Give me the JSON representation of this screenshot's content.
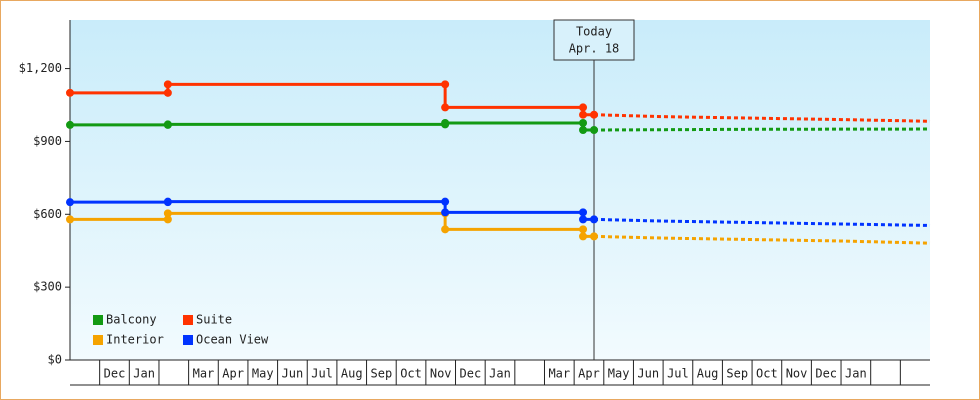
{
  "chart_data": {
    "type": "step-line",
    "categories": [
      null,
      "Dec",
      "Jan",
      null,
      "Mar",
      "Apr",
      "May",
      "Jun",
      "Jul",
      "Aug",
      "Sep",
      "Oct",
      "Nov",
      "Dec",
      "Jan",
      null,
      "Mar",
      "Apr",
      "May",
      "Jun",
      "Jul",
      "Aug",
      "Sep",
      "Oct",
      "Nov",
      "Dec",
      "Jan",
      null,
      null
    ],
    "xlim": [
      0,
      29
    ],
    "ylim": [
      0,
      1400
    ],
    "yticks": [
      {
        "value": 0,
        "label": "$0"
      },
      {
        "value": 300,
        "label": "$300"
      },
      {
        "value": 600,
        "label": "$600"
      },
      {
        "value": 900,
        "label": "$900"
      },
      {
        "value": 1200,
        "label": "$1,200"
      }
    ],
    "today": {
      "x": 17.67,
      "label_lines": [
        "Today",
        "Apr. 18"
      ]
    },
    "series": [
      {
        "name": "Balcony",
        "color": "#139a13",
        "x": [
          0,
          3.3,
          3.3,
          12.65,
          12.65,
          17.3,
          17.3,
          17.67
        ],
        "values": [
          968,
          968,
          970,
          970,
          976,
          976,
          947,
          947
        ],
        "forecast": {
          "x": [
            17.67,
            23,
            29
          ],
          "values": [
            947,
            950,
            951
          ]
        }
      },
      {
        "name": "Suite",
        "color": "#ff3300",
        "x": [
          0,
          3.3,
          3.3,
          12.65,
          12.65,
          17.3,
          17.3,
          17.67
        ],
        "values": [
          1100,
          1100,
          1135,
          1135,
          1040,
          1040,
          1010,
          1010
        ],
        "forecast": {
          "x": [
            17.67,
            20,
            23,
            26,
            29
          ],
          "values": [
            1010,
            1002,
            996,
            990,
            983
          ]
        }
      },
      {
        "name": "Interior",
        "color": "#f5a300",
        "x": [
          0,
          3.3,
          3.3,
          12.65,
          12.65,
          17.3,
          17.3,
          17.67
        ],
        "values": [
          579,
          579,
          604,
          604,
          538,
          538,
          509,
          509
        ],
        "forecast": {
          "x": [
            17.67,
            20,
            23,
            26,
            29
          ],
          "values": [
            509,
            502,
            496,
            490,
            481
          ]
        }
      },
      {
        "name": "Ocean View",
        "color": "#0033ff",
        "x": [
          0,
          3.3,
          3.3,
          12.65,
          12.65,
          17.3,
          17.3,
          17.67
        ],
        "values": [
          650,
          650,
          652,
          652,
          608,
          608,
          579,
          579
        ],
        "forecast": {
          "x": [
            17.67,
            20,
            23,
            26,
            29
          ],
          "values": [
            579,
            572,
            566,
            560,
            554
          ]
        }
      }
    ]
  }
}
